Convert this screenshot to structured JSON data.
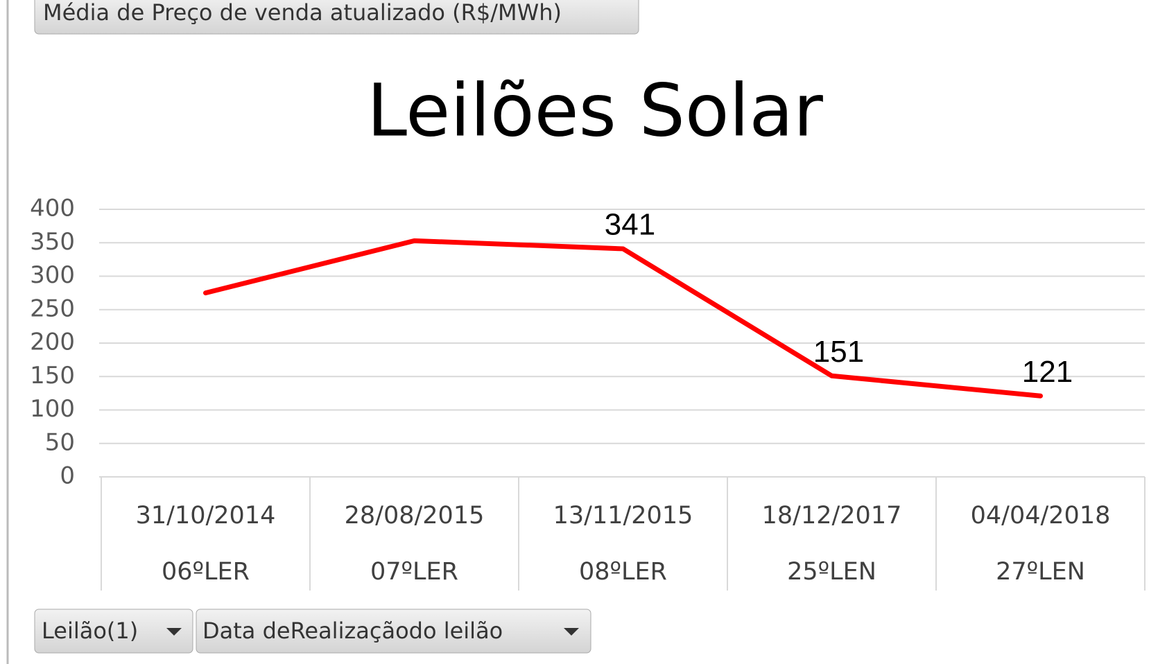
{
  "header": {
    "field_button": "Média de Preço de venda atualizado (R$/MWh)"
  },
  "chart_data": {
    "type": "line",
    "title": "Leilões Solar",
    "categories": [
      "31/10/2014",
      "28/08/2015",
      "13/11/2015",
      "18/12/2017",
      "04/04/2018"
    ],
    "category_groups": [
      "06ºLER",
      "07ºLER",
      "08ºLER",
      "25ºLEN",
      "27ºLEN"
    ],
    "series": [
      {
        "name": "Média de Preço de venda atualizado (R$/MWh)",
        "color": "#ff0000",
        "values": [
          275,
          353,
          341,
          151,
          121
        ],
        "value_labels": [
          null,
          null,
          "341",
          "151",
          "121"
        ]
      }
    ],
    "ylim": [
      0,
      400
    ],
    "yticks": [
      0,
      50,
      100,
      150,
      200,
      250,
      300,
      350,
      400
    ],
    "grid": true,
    "legend": false
  },
  "footer": {
    "buttons": [
      "Leilão(1)",
      "Data deRealizaçãodo leilão"
    ]
  }
}
